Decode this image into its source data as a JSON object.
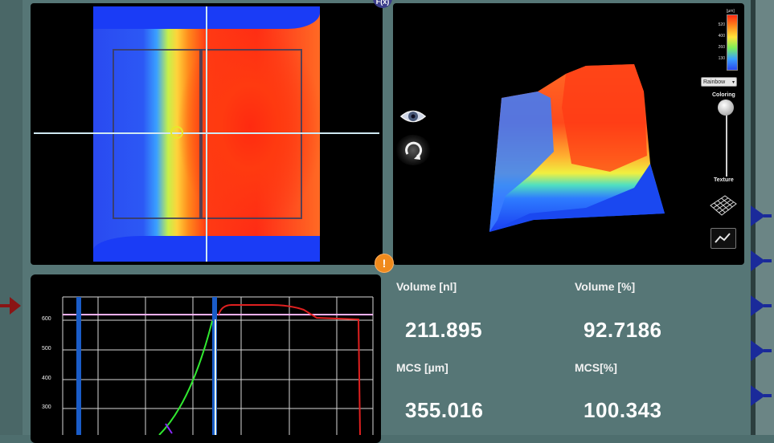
{
  "badges": {
    "fx": "F(x)",
    "warning": "!"
  },
  "view3d": {
    "palette": "Rainbow",
    "coloring_label": "Coloring",
    "texture_label": "Texture",
    "legend_ticks": [
      "520",
      "400",
      "260",
      "130"
    ],
    "legend_unit": "[µm]",
    "coloring_level": 1.0
  },
  "plot": {
    "y_ticks": [
      "600",
      "500",
      "400",
      "300"
    ]
  },
  "metrics": {
    "volume_nl_label": "Volume [nl]",
    "volume_nl_value": "211.895",
    "volume_pct_label": "Volume [%]",
    "volume_pct_value": "92.7186",
    "mcs_um_label": "MCS [µm]",
    "mcs_um_value": "355.016",
    "mcs_pct_label": "MCS[%]",
    "mcs_pct_value": "100.343"
  },
  "colors": {
    "accent_orange": "#f08a1c",
    "marker_blue": "#1a2a9a",
    "marker_red": "#8a1414",
    "panel_bg": "#567676"
  }
}
